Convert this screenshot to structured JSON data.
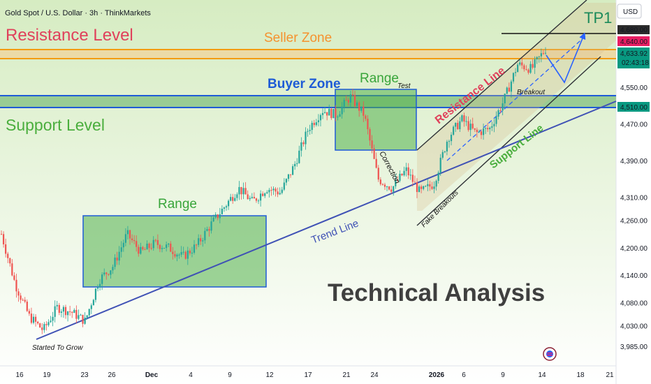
{
  "header": {
    "title": "Gold Spot / U.S. Dollar · 3h · ThinkMarkets"
  },
  "currency_label": "USD",
  "colors": {
    "background": "#d4ebc0",
    "bull": "#26a69a",
    "bear": "#ef5350",
    "resistance_band": "#f5a623",
    "support_band": "#2962ff",
    "trend_line": "#3f51b5",
    "channel": "#2f3237",
    "range_fill": "#7ac46a",
    "tp1_line": "#000000",
    "price_label_bg": "#2b2b2b",
    "current_price_bg": "#089981",
    "target_price_bg": "#e91e63",
    "support_price_bg": "#089981"
  },
  "annotations": {
    "resistance_level": "Resistance Level",
    "seller_zone": "Seller Zone",
    "buyer_zone": "Buyer Zone",
    "support_level": "Support Level",
    "range_top": "Range",
    "range_bottom": "Range",
    "test": "Test",
    "correction": "Correction",
    "fake_breakouts": "Fake Breakouts",
    "breakout": "Breakout",
    "resistance_line": "Resistance Line",
    "support_line": "Support Line",
    "trend_line": "Trend Line",
    "started_to_grow": "Started To Grow",
    "tp1": "TP1",
    "technical_analysis": "Technical Analysis"
  },
  "price_labels": {
    "tp1_price": "4,680.00",
    "target_price": "4,640.00",
    "current_price": "4,633.92",
    "countdown": "02:43:18",
    "support_price": "4,510.00"
  },
  "chart_data": {
    "type": "candlestick",
    "title": "Gold Spot / U.S. Dollar · 3h · ThinkMarkets",
    "y_axis": {
      "ticks": [
        "3,985.00",
        "4,030.00",
        "4,080.00",
        "4,140.00",
        "4,200.00",
        "4,260.00",
        "4,310.00",
        "4,390.00",
        "4,470.00",
        "4,550.00"
      ],
      "range": [
        3970,
        4720
      ]
    },
    "x_axis": {
      "ticks": [
        "16",
        "19",
        "23",
        "26",
        "Dec",
        "4",
        "9",
        "12",
        "17",
        "21",
        "24",
        "2026",
        "6",
        "9",
        "14",
        "18",
        "21"
      ]
    },
    "levels": {
      "resistance_band": [
        4633,
        4646
      ],
      "support_band": [
        4510,
        4530
      ],
      "tp1": 4680,
      "current": 4633.92
    },
    "price_path": [
      {
        "t": "Nov 13",
        "p": 4230
      },
      {
        "t": "Nov 15",
        "p": 4120
      },
      {
        "t": "Nov 17",
        "p": 4050
      },
      {
        "t": "Nov 19",
        "p": 4020
      },
      {
        "t": "Nov 20",
        "p": 4070
      },
      {
        "t": "Nov 21",
        "p": 4060
      },
      {
        "t": "Nov 23",
        "p": 4040
      },
      {
        "t": "Nov 24",
        "p": 4130
      },
      {
        "t": "Nov 26",
        "p": 4160
      },
      {
        "t": "Nov 28",
        "p": 4230
      },
      {
        "t": "Dec 1",
        "p": 4190
      },
      {
        "t": "Dec 3",
        "p": 4210
      },
      {
        "t": "Dec 5",
        "p": 4200
      },
      {
        "t": "Dec 8",
        "p": 4180
      },
      {
        "t": "Dec 10",
        "p": 4205
      },
      {
        "t": "Dec 11",
        "p": 4250
      },
      {
        "t": "Dec 12",
        "p": 4290
      },
      {
        "t": "Dec 15",
        "p": 4330
      },
      {
        "t": "Dec 16",
        "p": 4300
      },
      {
        "t": "Dec 18",
        "p": 4330
      },
      {
        "t": "Dec 19",
        "p": 4320
      },
      {
        "t": "Dec 21",
        "p": 4380
      },
      {
        "t": "Dec 22",
        "p": 4460
      },
      {
        "t": "Dec 23",
        "p": 4500
      },
      {
        "t": "Dec 24",
        "p": 4490
      },
      {
        "t": "Dec 26",
        "p": 4530
      },
      {
        "t": "Dec 27",
        "p": 4490
      },
      {
        "t": "Dec 28",
        "p": 4350
      },
      {
        "t": "Dec 29",
        "p": 4330
      },
      {
        "t": "Dec 30",
        "p": 4370
      },
      {
        "t": "Dec 31",
        "p": 4320
      },
      {
        "t": "Jan 2",
        "p": 4340
      },
      {
        "t": "Jan 4",
        "p": 4440
      },
      {
        "t": "Jan 6",
        "p": 4480
      },
      {
        "t": "Jan 7",
        "p": 4450
      },
      {
        "t": "Jan 9",
        "p": 4460
      },
      {
        "t": "Jan 10",
        "p": 4520
      },
      {
        "t": "Jan 12",
        "p": 4600
      },
      {
        "t": "Jan 13",
        "p": 4590
      },
      {
        "t": "Jan 14",
        "p": 4634
      }
    ],
    "legend": "none",
    "grid": false
  }
}
